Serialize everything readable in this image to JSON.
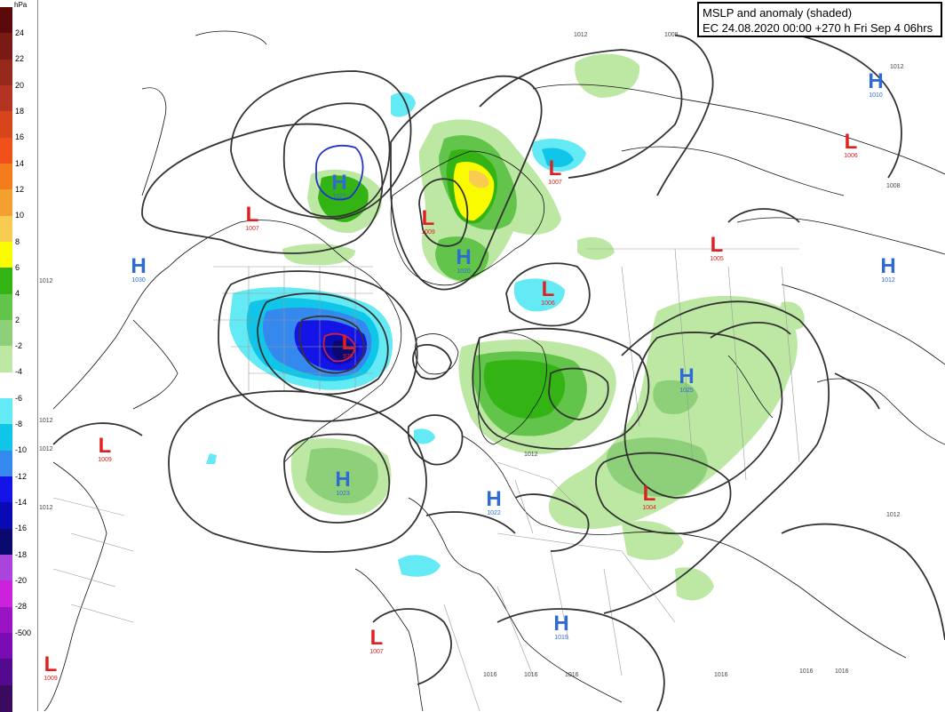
{
  "title": {
    "line1": "MSLP and anomaly (shaded)",
    "line2": "EC 24.08.2020 00:00 +270 h Fri Sep 4 06hrs"
  },
  "legend": {
    "unit": "hPa",
    "ticks": [
      "24",
      "22",
      "20",
      "18",
      "16",
      "14",
      "12",
      "10",
      "8",
      "6",
      "4",
      "2",
      "-2",
      "-4",
      "-6",
      "-8",
      "-10",
      "-12",
      "-14",
      "-16",
      "-18",
      "-20",
      "-28",
      "-500"
    ],
    "colors": [
      "#5a0a0a",
      "#7a1a14",
      "#96281c",
      "#b43424",
      "#d8441c",
      "#f0501a",
      "#f47c1c",
      "#f4a030",
      "#f8cc50",
      "#fafa00",
      "#34b414",
      "#62c44a",
      "#8ed07a",
      "#bce8a4",
      "#ffffff",
      "#64eaf4",
      "#10c6e8",
      "#3488ee",
      "#1414e6",
      "#0a0ab4",
      "#0a0a6e",
      "#aa44dc",
      "#cc22dc",
      "#9a14c4",
      "#7a0cb4",
      "#540a8e",
      "#3a0a5e"
    ]
  },
  "centers": [
    {
      "type": "H",
      "value": "1027"
    },
    {
      "type": "L",
      "value": "1007"
    },
    {
      "type": "H",
      "value": "1020"
    },
    {
      "type": "L",
      "value": "1009"
    },
    {
      "type": "L",
      "value": "1006"
    },
    {
      "type": "L",
      "value": "1007"
    },
    {
      "type": "H",
      "value": "1010"
    },
    {
      "type": "L",
      "value": "1006"
    },
    {
      "type": "H",
      "value": "1012"
    },
    {
      "type": "L",
      "value": "1005"
    },
    {
      "type": "H",
      "value": "1025"
    },
    {
      "type": "H",
      "value": "1030"
    },
    {
      "type": "L",
      "value": "976"
    },
    {
      "type": "L",
      "value": "1009"
    },
    {
      "type": "H",
      "value": "1023"
    },
    {
      "type": "H",
      "value": "1022"
    },
    {
      "type": "L",
      "value": "1004"
    },
    {
      "type": "L",
      "value": "1007"
    },
    {
      "type": "H",
      "value": "1019"
    },
    {
      "type": "L",
      "value": "1009"
    }
  ],
  "isobar_labels": [
    "1012",
    "1008",
    "1008",
    "1012",
    "1012",
    "1012",
    "1012",
    "1012",
    "1012",
    "1012",
    "1016",
    "1016",
    "1016",
    "1016",
    "1016",
    "1016"
  ]
}
